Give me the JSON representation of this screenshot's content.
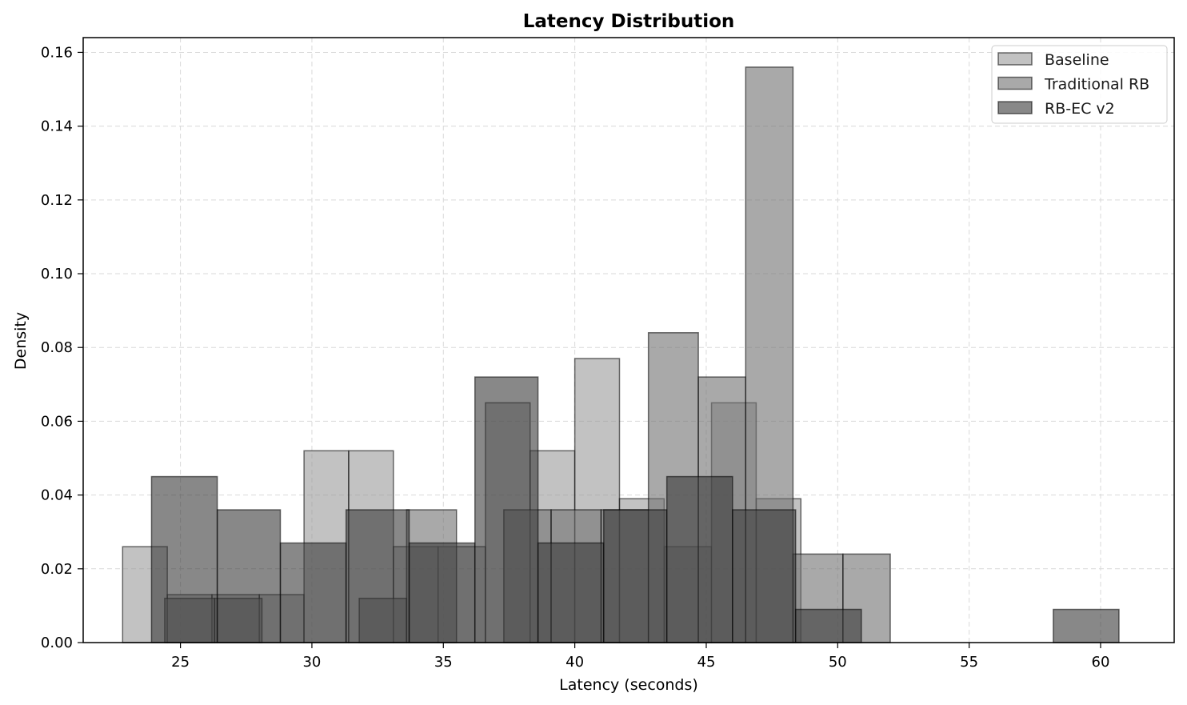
{
  "chart_data": {
    "type": "histogram",
    "title": "Latency Distribution",
    "xlabel": "Latency (seconds)",
    "ylabel": "Density",
    "xlim": [
      21.3,
      62.8
    ],
    "ylim": [
      0,
      0.164
    ],
    "xticks": [
      25,
      30,
      35,
      40,
      45,
      50,
      55,
      60
    ],
    "xtick_labels": [
      "25",
      "30",
      "35",
      "40",
      "45",
      "50",
      "55",
      "60"
    ],
    "yticks": [
      0,
      0.02,
      0.04,
      0.06,
      0.08,
      0.1,
      0.12,
      0.14,
      0.16
    ],
    "ytick_labels": [
      "0.00",
      "0.02",
      "0.04",
      "0.06",
      "0.08",
      "0.10",
      "0.12",
      "0.14",
      "0.16"
    ],
    "grid": true,
    "legend_position": "upper right",
    "series": [
      {
        "name": "Baseline",
        "color": "#999999",
        "opacity": 0.6,
        "bins": [
          {
            "x0": 22.8,
            "x1": 24.5,
            "density": 0.026
          },
          {
            "x0": 24.5,
            "x1": 26.2,
            "density": 0.013
          },
          {
            "x0": 26.2,
            "x1": 28.0,
            "density": 0.013
          },
          {
            "x0": 28.0,
            "x1": 29.7,
            "density": 0.013
          },
          {
            "x0": 29.7,
            "x1": 31.4,
            "density": 0.052
          },
          {
            "x0": 31.4,
            "x1": 33.1,
            "density": 0.052
          },
          {
            "x0": 33.1,
            "x1": 34.8,
            "density": 0.026
          },
          {
            "x0": 34.8,
            "x1": 36.6,
            "density": 0.026
          },
          {
            "x0": 36.6,
            "x1": 38.3,
            "density": 0.065
          },
          {
            "x0": 38.3,
            "x1": 40.0,
            "density": 0.052
          },
          {
            "x0": 40.0,
            "x1": 41.7,
            "density": 0.077
          },
          {
            "x0": 41.7,
            "x1": 43.4,
            "density": 0.039
          },
          {
            "x0": 43.4,
            "x1": 45.2,
            "density": 0.026
          },
          {
            "x0": 45.2,
            "x1": 46.9,
            "density": 0.065
          },
          {
            "x0": 46.9,
            "x1": 48.6,
            "density": 0.039
          }
        ]
      },
      {
        "name": "Traditional RB",
        "color": "#6f6f6f",
        "opacity": 0.6,
        "bins": [
          {
            "x0": 24.4,
            "x1": 26.3,
            "density": 0.012
          },
          {
            "x0": 26.3,
            "x1": 28.1,
            "density": 0.012
          },
          {
            "x0": 28.1,
            "x1": 30.0,
            "density": 0.0
          },
          {
            "x0": 30.0,
            "x1": 31.8,
            "density": 0.0
          },
          {
            "x0": 31.8,
            "x1": 33.6,
            "density": 0.012
          },
          {
            "x0": 33.6,
            "x1": 35.5,
            "density": 0.036
          },
          {
            "x0": 35.5,
            "x1": 37.3,
            "density": 0.0
          },
          {
            "x0": 37.3,
            "x1": 39.1,
            "density": 0.036
          },
          {
            "x0": 39.1,
            "x1": 41.0,
            "density": 0.036
          },
          {
            "x0": 41.0,
            "x1": 42.8,
            "density": 0.036
          },
          {
            "x0": 42.8,
            "x1": 44.7,
            "density": 0.084
          },
          {
            "x0": 44.7,
            "x1": 46.5,
            "density": 0.072
          },
          {
            "x0": 46.5,
            "x1": 48.3,
            "density": 0.156
          },
          {
            "x0": 48.3,
            "x1": 50.2,
            "density": 0.024
          },
          {
            "x0": 50.2,
            "x1": 52.0,
            "density": 0.024
          }
        ]
      },
      {
        "name": "RB-EC v2",
        "color": "#383838",
        "opacity": 0.6,
        "bins": [
          {
            "x0": 23.9,
            "x1": 26.4,
            "density": 0.045
          },
          {
            "x0": 26.4,
            "x1": 28.8,
            "density": 0.036
          },
          {
            "x0": 28.8,
            "x1": 31.3,
            "density": 0.027
          },
          {
            "x0": 31.3,
            "x1": 33.7,
            "density": 0.036
          },
          {
            "x0": 33.7,
            "x1": 36.2,
            "density": 0.027
          },
          {
            "x0": 36.2,
            "x1": 38.6,
            "density": 0.072
          },
          {
            "x0": 38.6,
            "x1": 41.1,
            "density": 0.027
          },
          {
            "x0": 41.1,
            "x1": 43.5,
            "density": 0.036
          },
          {
            "x0": 43.5,
            "x1": 46.0,
            "density": 0.045
          },
          {
            "x0": 46.0,
            "x1": 48.4,
            "density": 0.036
          },
          {
            "x0": 48.4,
            "x1": 50.9,
            "density": 0.009
          },
          {
            "x0": 50.9,
            "x1": 53.3,
            "density": 0.0
          },
          {
            "x0": 53.3,
            "x1": 55.8,
            "density": 0.0
          },
          {
            "x0": 55.8,
            "x1": 58.2,
            "density": 0.0
          },
          {
            "x0": 58.2,
            "x1": 60.7,
            "density": 0.009
          }
        ]
      }
    ]
  }
}
